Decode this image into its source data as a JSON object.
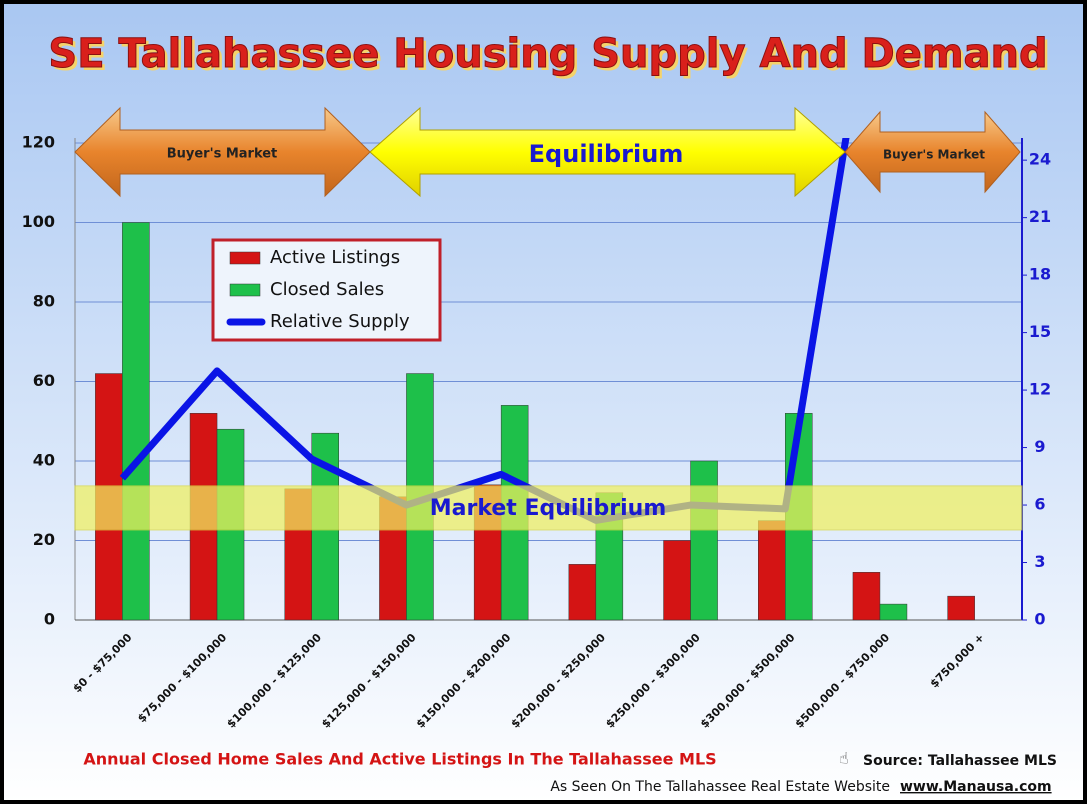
{
  "chart_data": {
    "type": "bar_line",
    "title": "SE Tallahassee Housing Supply And Demand",
    "categories": [
      "$0 - $75,000",
      "$75,000 - $100,000",
      "$100,000 - $125,000",
      "$125,000 - $150,000",
      "$150,000 - $200,000",
      "$200,000 - $250,000",
      "$250,000 - $300,000",
      "$300,000 - $500,000",
      "$500,000 - $750,000",
      "$750,000 +"
    ],
    "series": [
      {
        "name": "Active Listings",
        "color": "#d41414",
        "type": "bar",
        "values": [
          62,
          52,
          33,
          31,
          34,
          14,
          20,
          25,
          12,
          6
        ]
      },
      {
        "name": "Closed Sales",
        "color": "#1ec04a",
        "type": "bar",
        "values": [
          100,
          48,
          47,
          62,
          54,
          32,
          40,
          52,
          4,
          0
        ]
      },
      {
        "name": "Relative Supply",
        "color": "#0a14e6",
        "type": "line",
        "axis": "y2",
        "values": [
          7.4,
          13.0,
          8.4,
          6.0,
          7.6,
          5.2,
          6.0,
          5.8,
          36,
          null
        ]
      }
    ],
    "ylim": [
      0,
      120
    ],
    "yticks": [
      0,
      20,
      40,
      60,
      80,
      100,
      120
    ],
    "y2lim": [
      0,
      25
    ],
    "y2ticks": [
      0,
      3,
      6,
      9,
      12,
      15,
      18,
      21,
      24
    ],
    "grid": true,
    "annotations": {
      "buyers_left": "Buyer's Market",
      "equilibrium": "Equilibrium",
      "buyers_right": "Buyer's Market",
      "band_label": "Market Equilibrium"
    },
    "equilibrium_band": [
      4.7,
      7.0
    ],
    "caption": "Annual Closed Home Sales And Active Listings In The Tallahassee MLS",
    "source": "Source: Tallahassee MLS",
    "footer": "As Seen On The Tallahassee Real Estate Website",
    "website": "www.Manausa.com"
  }
}
